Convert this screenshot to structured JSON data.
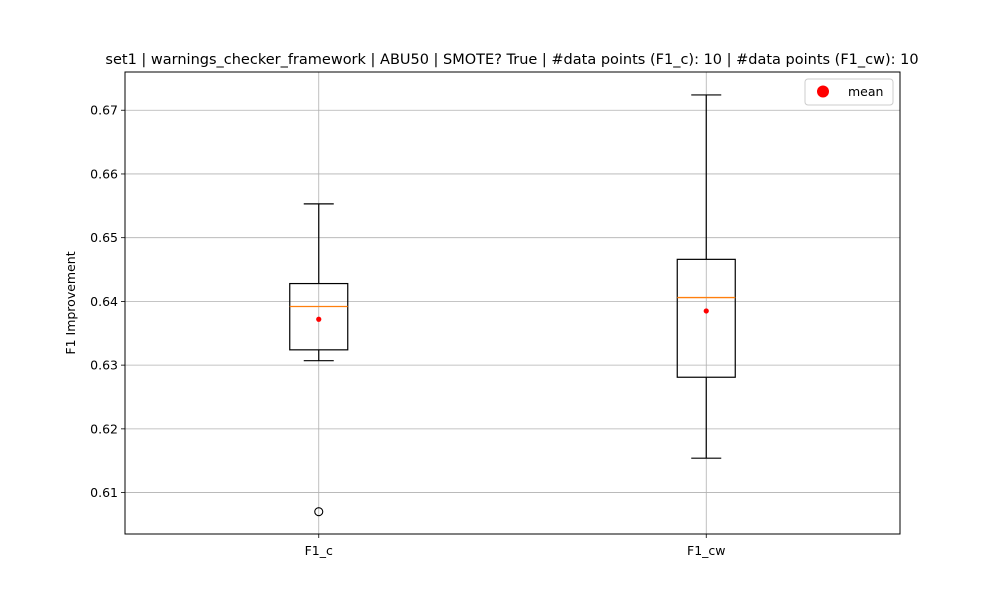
{
  "chart_data": {
    "type": "box",
    "title": "set1 | warnings_checker_framework | ABU50 | SMOTE? True | #data points (F1_c): 10 | #data points (F1_cw): 10",
    "xlabel": "",
    "ylabel": "F1 Improvement",
    "categories": [
      "F1_c",
      "F1_cw"
    ],
    "ylim": [
      0.6035,
      0.676
    ],
    "yticks": [
      0.61,
      0.62,
      0.63,
      0.64,
      0.65,
      0.66,
      0.67
    ],
    "ytick_labels": [
      "0.61",
      "0.62",
      "0.63",
      "0.64",
      "0.65",
      "0.66",
      "0.67"
    ],
    "grid": true,
    "legend": {
      "position": "top-right",
      "entries": [
        {
          "label": "mean",
          "marker": "circle",
          "color": "#ff0000"
        }
      ]
    },
    "boxes": [
      {
        "label": "F1_c",
        "whisker_low": 0.6307,
        "q1": 0.6324,
        "median": 0.6392,
        "q3": 0.6428,
        "whisker_high": 0.6553,
        "mean": 0.6372,
        "outliers": [
          0.607
        ]
      },
      {
        "label": "F1_cw",
        "whisker_low": 0.6154,
        "q1": 0.6281,
        "median": 0.6406,
        "q3": 0.6466,
        "whisker_high": 0.6724,
        "mean": 0.6385,
        "outliers": []
      }
    ],
    "colors": {
      "box": "#000000",
      "median": "#ff7f0e",
      "mean": "#ff0000",
      "grid": "#b0b0b0"
    }
  }
}
